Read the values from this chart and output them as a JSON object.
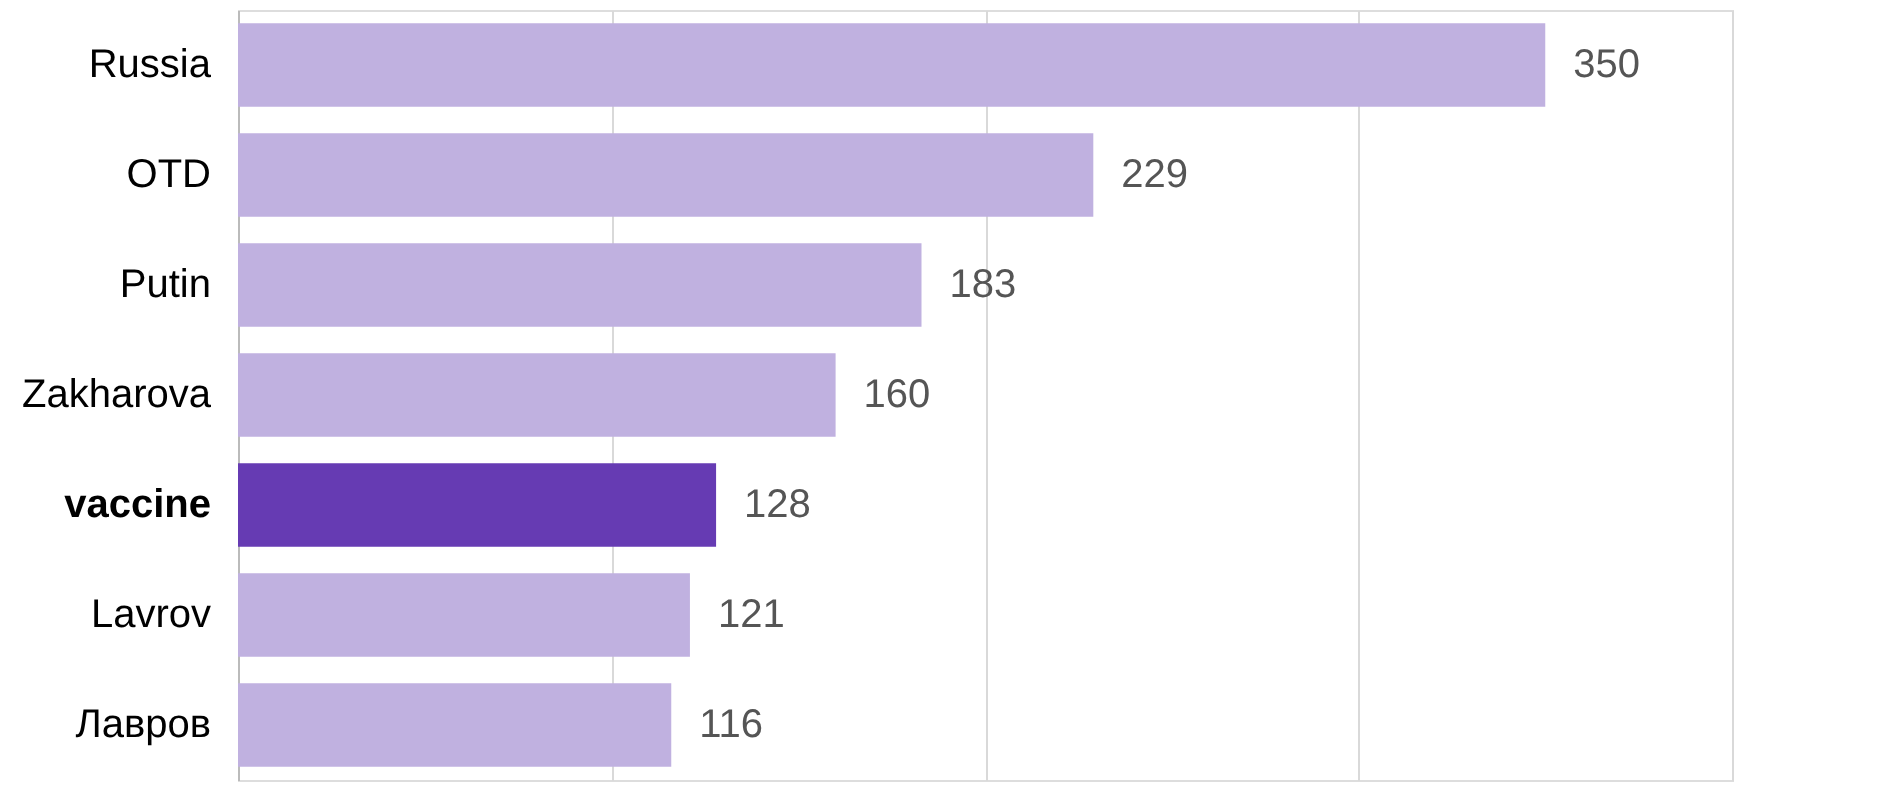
{
  "chart_data": {
    "type": "bar",
    "orientation": "horizontal",
    "categories": [
      "Russia",
      "OTD",
      "Putin",
      "Zakharova",
      "vaccine",
      "Lavrov",
      "Лавров"
    ],
    "values": [
      350,
      229,
      183,
      160,
      128,
      121,
      116
    ],
    "colors": [
      "#c0b1e0",
      "#c0b1e0",
      "#c0b1e0",
      "#c0b1e0",
      "#663bb3",
      "#c0b1e0",
      "#c0b1e0"
    ],
    "xlim": [
      0,
      400
    ],
    "xticks": [
      {
        "value": 0,
        "label": null
      },
      {
        "value": 100,
        "label": null
      },
      {
        "value": 200,
        "label": null
      },
      {
        "value": 300,
        "label": null
      },
      {
        "value": 400,
        "label": null
      }
    ],
    "grid": "x",
    "tick_labels": "y",
    "data_labels": true
  }
}
